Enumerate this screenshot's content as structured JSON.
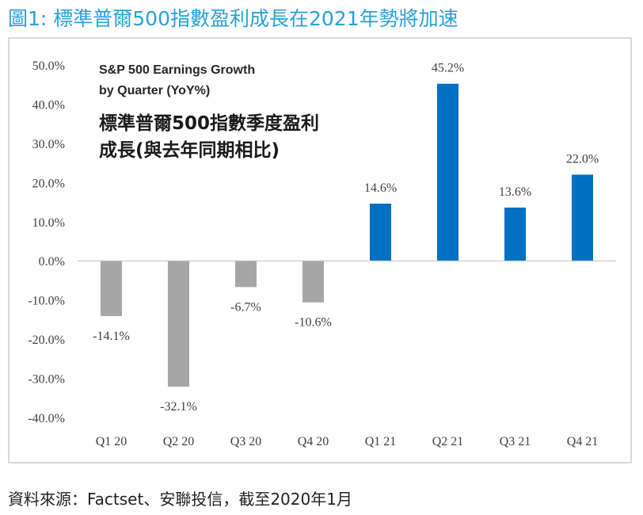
{
  "figure_title": "圖1: 標準普爾500指數盈利成長在2021年勢將加速",
  "source_note": "資料來源：Factset、安聯投信，截至2020年1月",
  "colors": {
    "title": "#2aa0d8",
    "negative_bar": "#a6a6a6",
    "positive_bar": "#0070c0",
    "axis": "#bfbfbf",
    "text": "#404040"
  },
  "chart_data": {
    "type": "bar",
    "title": "S&P 500 Earnings Growth by Quarter (YoY%)",
    "title_lines": [
      "S&P 500 Earnings Growth",
      "by Quarter (YoY%)"
    ],
    "subtitle": "標準普爾500指數季度盈利成長(與去年同期相比)",
    "subtitle_lines": [
      "標準普爾500指數季度盈利",
      "成長(與去年同期相比)"
    ],
    "categories": [
      "Q1 20",
      "Q2 20",
      "Q3 20",
      "Q4 20",
      "Q1 21",
      "Q2 21",
      "Q3 21",
      "Q4 21"
    ],
    "values": [
      -14.1,
      -32.1,
      -6.7,
      -10.6,
      14.6,
      45.2,
      13.6,
      22.0
    ],
    "data_labels": [
      "-14.1%",
      "-32.1%",
      "-6.7%",
      "-10.6%",
      "14.6%",
      "45.2%",
      "13.6%",
      "22.0%"
    ],
    "ylim": [
      -40,
      50
    ],
    "yticks": [
      50,
      40,
      30,
      20,
      10,
      0,
      -10,
      -20,
      -30,
      -40
    ],
    "ytick_labels": [
      "50.0%",
      "40.0%",
      "30.0%",
      "20.0%",
      "10.0%",
      "0.0%",
      "-10.0%",
      "-20.0%",
      "-30.0%",
      "-40.0%"
    ],
    "grid": false,
    "legend": "none"
  }
}
